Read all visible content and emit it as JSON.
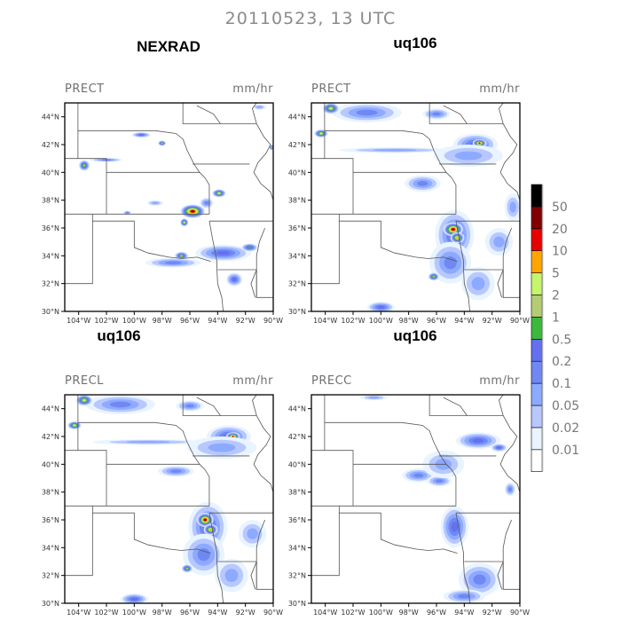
{
  "figure": {
    "title": "20110523, 13 UTC",
    "lat_labels": [
      "30°N",
      "32°N",
      "34°N",
      "36°N",
      "38°N",
      "40°N",
      "42°N",
      "44°N"
    ],
    "lat_values": [
      30,
      32,
      34,
      36,
      38,
      40,
      42,
      44
    ],
    "lon_labels": [
      "104°W",
      "102°W",
      "100°W",
      "98°W",
      "96°W",
      "94°W",
      "92°W",
      "90°W"
    ],
    "lon_values": [
      -104,
      -102,
      -100,
      -98,
      -96,
      -94,
      -92,
      -90
    ],
    "extent": {
      "lon": [
        -105,
        -90
      ],
      "lat": [
        30,
        45
      ]
    }
  },
  "panels": [
    {
      "title": "NEXRAD",
      "variable": "PRECT",
      "units": "mm/hr",
      "cells": [
        [
          -95.8,
          37.2,
          0.9,
          0.5,
          11
        ],
        [
          -96.4,
          36.4,
          0.3,
          0.3,
          8
        ],
        [
          -93.9,
          38.5,
          0.5,
          0.3,
          8
        ],
        [
          -98,
          42.1,
          0.3,
          0.2,
          7
        ],
        [
          -99.5,
          42.7,
          0.7,
          0.2,
          5
        ],
        [
          -103.6,
          40.5,
          0.4,
          0.4,
          7
        ],
        [
          -102,
          40.9,
          1.2,
          0.15,
          4
        ],
        [
          -96.6,
          34,
          0.5,
          0.3,
          7
        ],
        [
          -93.6,
          34.2,
          2,
          0.6,
          5
        ],
        [
          -97.2,
          33.5,
          2,
          0.35,
          4
        ],
        [
          -92.8,
          32.3,
          0.6,
          0.5,
          5
        ],
        [
          -91.7,
          34.6,
          0.6,
          0.3,
          6
        ],
        [
          -90.1,
          41.8,
          0.2,
          0.2,
          7
        ],
        [
          -91,
          44.7,
          0.5,
          0.2,
          3
        ],
        [
          -100.5,
          37.1,
          0.3,
          0.15,
          4
        ],
        [
          -98.5,
          37.8,
          0.6,
          0.2,
          3
        ],
        [
          -94.8,
          37.8,
          0.5,
          0.4,
          4
        ]
      ]
    },
    {
      "title": "uq106",
      "variable": "PRECT",
      "units": "mm/hr",
      "cells": [
        [
          -94.7,
          35.5,
          1.4,
          1.8,
          5
        ],
        [
          -94.8,
          35.9,
          0.7,
          0.5,
          11
        ],
        [
          -94.5,
          35.3,
          0.5,
          0.4,
          9
        ],
        [
          -93.2,
          42.0,
          1.6,
          0.8,
          5
        ],
        [
          -92.9,
          42.1,
          0.5,
          0.3,
          10
        ],
        [
          -93.7,
          41.2,
          2.5,
          0.8,
          3
        ],
        [
          -97,
          39.2,
          1.3,
          0.6,
          4
        ],
        [
          -101,
          44.3,
          2.5,
          0.7,
          4
        ],
        [
          -103.6,
          44.6,
          0.6,
          0.4,
          8
        ],
        [
          -104.3,
          42.8,
          0.5,
          0.3,
          8
        ],
        [
          -99,
          41.6,
          4,
          0.2,
          3
        ],
        [
          -95,
          33.5,
          1.5,
          1.5,
          4
        ],
        [
          -96.2,
          32.5,
          0.4,
          0.3,
          7
        ],
        [
          -93,
          32,
          1.2,
          1.2,
          3
        ],
        [
          -100,
          30.3,
          1,
          0.4,
          5
        ],
        [
          -91.5,
          35,
          1,
          1,
          3
        ],
        [
          -90.5,
          37.5,
          0.6,
          1,
          3
        ],
        [
          -96,
          44.2,
          1,
          0.4,
          4
        ]
      ]
    },
    {
      "title": "uq106",
      "variable": "PRECL",
      "units": "mm/hr",
      "cells": [
        [
          -94.7,
          35.5,
          1.4,
          1.8,
          5
        ],
        [
          -94.9,
          36.0,
          0.6,
          0.5,
          11
        ],
        [
          -94.5,
          35.3,
          0.5,
          0.4,
          9
        ],
        [
          -93.2,
          42.0,
          1.6,
          0.8,
          5
        ],
        [
          -92.9,
          42.0,
          0.5,
          0.3,
          10
        ],
        [
          -93.7,
          41.2,
          2.5,
          0.8,
          3
        ],
        [
          -97,
          39.5,
          1.3,
          0.4,
          4
        ],
        [
          -101,
          44.3,
          2.5,
          0.7,
          4
        ],
        [
          -103.6,
          44.6,
          0.6,
          0.4,
          8
        ],
        [
          -104.3,
          42.8,
          0.5,
          0.3,
          8
        ],
        [
          -99,
          41.6,
          4,
          0.2,
          3
        ],
        [
          -95,
          33.5,
          1.5,
          1.5,
          4
        ],
        [
          -96.2,
          32.5,
          0.4,
          0.3,
          7
        ],
        [
          -93,
          32,
          1.2,
          1.2,
          3
        ],
        [
          -100,
          30.3,
          1,
          0.4,
          5
        ],
        [
          -91.5,
          35,
          1,
          1,
          3
        ],
        [
          -96,
          44.2,
          1,
          0.4,
          4
        ]
      ]
    },
    {
      "title": "uq106",
      "variable": "PRECC",
      "units": "mm/hr",
      "cells": [
        [
          -94.7,
          35.5,
          1,
          1.5,
          5
        ],
        [
          -93,
          41.7,
          1.6,
          0.6,
          5
        ],
        [
          -91.5,
          41.2,
          0.6,
          0.3,
          5
        ],
        [
          -97.3,
          39.2,
          1.2,
          0.5,
          4
        ],
        [
          -95.8,
          38.8,
          0.9,
          0.4,
          4
        ],
        [
          -92.9,
          31.7,
          1.5,
          1.2,
          4
        ],
        [
          -94,
          30.5,
          1.5,
          0.5,
          4
        ],
        [
          -95.5,
          40,
          1.5,
          1,
          3
        ],
        [
          -90.7,
          38.2,
          0.4,
          0.5,
          4
        ],
        [
          -100.5,
          44.8,
          1,
          0.2,
          3
        ]
      ]
    }
  ],
  "colorbar": {
    "labels": [
      "0.01",
      "0.02",
      "0.05",
      "0.1",
      "0.2",
      "0.5",
      "1",
      "2",
      "5",
      "10",
      "20",
      "50"
    ],
    "colors": [
      "#ffffff",
      "#e8f4ff",
      "#b8c8ff",
      "#8caaff",
      "#7088f2",
      "#6470f0",
      "#3cb83c",
      "#b4cc74",
      "#c4f56c",
      "#ffa500",
      "#e60000",
      "#800000",
      "#000000"
    ]
  }
}
